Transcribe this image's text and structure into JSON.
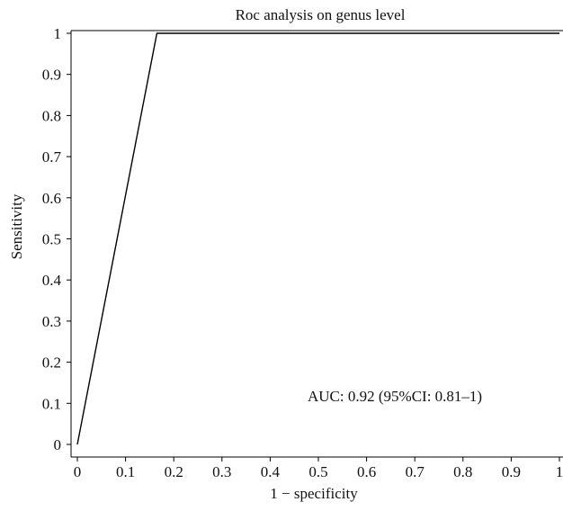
{
  "chart_data": {
    "type": "line",
    "title": "Roc analysis on genus level",
    "xlabel": "1 − specificity",
    "ylabel": "Sensitivity",
    "xlim": [
      0,
      1
    ],
    "ylim": [
      0,
      1
    ],
    "x_ticks": [
      "0",
      "0.1",
      "0.2",
      "0.3",
      "0.4",
      "0.5",
      "0.6",
      "0.7",
      "0.8",
      "0.9",
      "1"
    ],
    "y_ticks": [
      "0",
      "0.1",
      "0.2",
      "0.3",
      "0.4",
      "0.5",
      "0.6",
      "0.7",
      "0.8",
      "0.9",
      "1"
    ],
    "grid": false,
    "series": [
      {
        "x": [
          0,
          0.165,
          1
        ],
        "y": [
          0,
          1,
          1
        ],
        "color": "#000000"
      }
    ],
    "annotation": "AUC: 0.92 (95%CI: 0.81–1)"
  }
}
